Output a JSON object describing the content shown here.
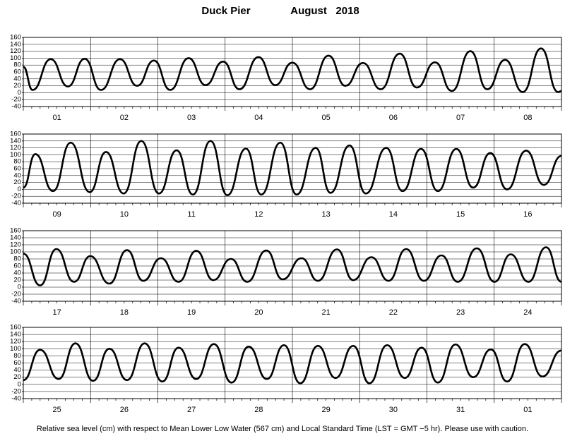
{
  "header": {
    "title": "Duck Pier",
    "date": "August   2018"
  },
  "footer": "Relative sea level (cm) with respect to Mean Lower Low Water (567 cm) and Local Standard Time (LST = GMT −5 hr). Please use with caution.",
  "chart_data": [
    {
      "type": "line",
      "categories": [
        "01",
        "02",
        "03",
        "04",
        "05",
        "06",
        "07",
        "08"
      ],
      "x": [
        0,
        3.3,
        9.8,
        15.9,
        21.9,
        27.7,
        34.5,
        40.6,
        46.6,
        52.4,
        59.0,
        65.0,
        71.3,
        77.1,
        83.9,
        89.9,
        96.0,
        102.3,
        108.9,
        114.9,
        121.2,
        127.5,
        134.3,
        140.4,
        146.9,
        152.9,
        159.5,
        165.5,
        171.9,
        178.2,
        184.7,
        190.8,
        192
      ],
      "series": [
        {
          "color": "#000000",
          "values": [
            75,
            8,
            97,
            18,
            98,
            8,
            97,
            20,
            93,
            8,
            100,
            22,
            90,
            10,
            103,
            22,
            87,
            10,
            107,
            20,
            86,
            10,
            113,
            15,
            88,
            5,
            120,
            10,
            95,
            2,
            128,
            2,
            5
          ]
        }
      ],
      "xlim": [
        0,
        192
      ],
      "ylim": [
        -40,
        160
      ],
      "yticks": [
        -40,
        -20,
        0,
        20,
        40,
        60,
        80,
        100,
        120,
        140,
        160
      ],
      "grid": true
    },
    {
      "type": "line",
      "categories": [
        "09",
        "10",
        "11",
        "12",
        "13",
        "14",
        "15",
        "16"
      ],
      "x": [
        0,
        4.3,
        10.6,
        16.9,
        23.7,
        29.5,
        35.8,
        42.1,
        48.4,
        54.7,
        60.5,
        66.8,
        72.8,
        79.4,
        84.9,
        91.7,
        97.5,
        104.3,
        109.6,
        116.4,
        122.2,
        129.5,
        135.3,
        141.9,
        147.9,
        154.5,
        160.5,
        166.6,
        172.6,
        179.4,
        185.7,
        192
      ],
      "series": [
        {
          "color": "#000000",
          "values": [
            5,
            102,
            -5,
            135,
            -8,
            108,
            -12,
            140,
            -12,
            113,
            -15,
            140,
            -17,
            118,
            -15,
            135,
            -15,
            120,
            -10,
            127,
            -12,
            120,
            -5,
            117,
            -5,
            117,
            5,
            105,
            0,
            112,
            13,
            97
          ]
        }
      ],
      "xlim": [
        0,
        192
      ],
      "ylim": [
        -40,
        160
      ],
      "yticks": [
        -40,
        -20,
        0,
        20,
        40,
        60,
        80,
        100,
        120,
        140,
        160
      ],
      "grid": true
    },
    {
      "type": "line",
      "categories": [
        "17",
        "18",
        "19",
        "20",
        "21",
        "22",
        "23",
        "24"
      ],
      "x": [
        0,
        6.0,
        11.8,
        18.1,
        23.9,
        30.7,
        37.0,
        42.8,
        49.1,
        55.4,
        61.7,
        67.8,
        74.1,
        79.9,
        86.7,
        92.5,
        99.3,
        105.1,
        111.9,
        117.7,
        124.2,
        130.3,
        136.6,
        142.9,
        149.2,
        155.0,
        161.8,
        168.1,
        173.9,
        180.2,
        186.5,
        192
      ],
      "series": [
        {
          "color": "#000000",
          "values": [
            95,
            5,
            108,
            15,
            88,
            10,
            105,
            18,
            82,
            15,
            103,
            20,
            80,
            15,
            104,
            22,
            82,
            18,
            107,
            20,
            85,
            18,
            108,
            18,
            90,
            15,
            110,
            15,
            93,
            15,
            113,
            15
          ]
        }
      ],
      "xlim": [
        0,
        192
      ],
      "ylim": [
        -40,
        160
      ],
      "yticks": [
        -40,
        -20,
        0,
        20,
        40,
        60,
        80,
        100,
        120,
        140,
        160
      ],
      "grid": true
    },
    {
      "type": "line",
      "categories": [
        "25",
        "26",
        "27",
        "28",
        "29",
        "30",
        "31",
        "01"
      ],
      "x": [
        0,
        6.0,
        12.6,
        18.6,
        24.9,
        30.7,
        37.0,
        43.3,
        49.6,
        55.4,
        61.7,
        68.0,
        74.3,
        80.4,
        86.9,
        93.0,
        98.8,
        105.1,
        111.4,
        117.7,
        123.5,
        129.8,
        136.1,
        142.1,
        147.9,
        154.2,
        160.5,
        166.8,
        172.6,
        178.9,
        185.2,
        192
      ],
      "series": [
        {
          "color": "#000000",
          "values": [
            12,
            97,
            15,
            115,
            10,
            100,
            12,
            115,
            8,
            103,
            15,
            113,
            5,
            106,
            15,
            110,
            3,
            108,
            18,
            108,
            3,
            110,
            18,
            103,
            5,
            112,
            20,
            98,
            8,
            113,
            22,
            95
          ]
        }
      ],
      "xlim": [
        0,
        192
      ],
      "ylim": [
        -40,
        160
      ],
      "yticks": [
        -40,
        -20,
        0,
        20,
        40,
        60,
        80,
        100,
        120,
        140,
        160
      ],
      "grid": true
    }
  ]
}
